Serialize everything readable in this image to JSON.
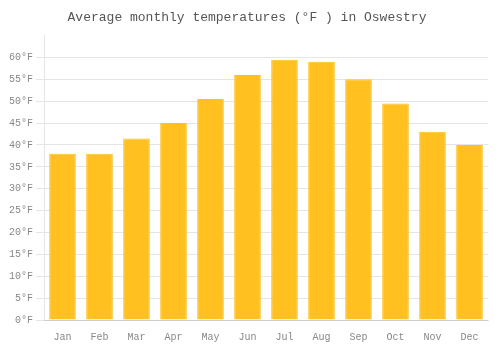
{
  "chart_data": {
    "type": "bar",
    "title": "Average monthly temperatures (°F ) in Oswestry",
    "categories": [
      "Jan",
      "Feb",
      "Mar",
      "Apr",
      "May",
      "Jun",
      "Jul",
      "Aug",
      "Sep",
      "Oct",
      "Nov",
      "Dec"
    ],
    "values": [
      38,
      38,
      41.5,
      45,
      50.5,
      56,
      59.5,
      59,
      55,
      49.5,
      43,
      40
    ],
    "color": "#FFC020",
    "ylim": [
      0,
      65
    ],
    "yticks": [
      {
        "value": 0,
        "label": "0°F"
      },
      {
        "value": 5,
        "label": "5°F"
      },
      {
        "value": 10,
        "label": "10°F"
      },
      {
        "value": 15,
        "label": "15°F"
      },
      {
        "value": 20,
        "label": "20°F"
      },
      {
        "value": 25,
        "label": "25°F"
      },
      {
        "value": 30,
        "label": "30°F"
      },
      {
        "value": 35,
        "label": "35°F"
      },
      {
        "value": 40,
        "label": "40°F"
      },
      {
        "value": 45,
        "label": "45°F"
      },
      {
        "value": 50,
        "label": "50°F"
      },
      {
        "value": 55,
        "label": "55°F"
      },
      {
        "value": 60,
        "label": "60°F"
      }
    ],
    "grid": true
  }
}
